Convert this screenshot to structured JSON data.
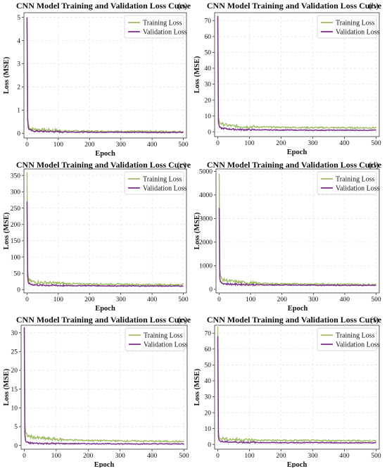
{
  "figure": {
    "panel_title": "CNN Model Training and Validation Loss Curve",
    "xlabel": "Epoch",
    "ylabel": "Loss (MSE)",
    "legend": [
      "Training Loss",
      "Validation Loss"
    ],
    "colors": {
      "training": "#9dbb5f",
      "validation": "#7b2f8c",
      "grid": "#e3e3e3"
    }
  },
  "chart_data": [
    {
      "type": "line",
      "panel": "(a)",
      "title": "CNN Model Training and Validation Loss Curve",
      "xlabel": "Epoch",
      "ylabel": "Loss (MSE)",
      "xlim": [
        -10,
        510
      ],
      "ylim": [
        -0.2,
        5.2
      ],
      "xticks": [
        0,
        100,
        200,
        300,
        400,
        500
      ],
      "yticks": [
        0,
        1,
        2,
        3,
        4,
        5
      ],
      "legend_position": "top-right",
      "grid": true,
      "series": [
        {
          "name": "Training Loss",
          "color": "#9dbb5f",
          "x": [
            0,
            1,
            2,
            3,
            5,
            8,
            12,
            20,
            30,
            50,
            80,
            120,
            200,
            300,
            400,
            500
          ],
          "y": [
            5.0,
            2.0,
            0.7,
            0.4,
            0.3,
            0.25,
            0.2,
            0.18,
            0.16,
            0.14,
            0.12,
            0.1,
            0.09,
            0.08,
            0.08,
            0.07
          ]
        },
        {
          "name": "Validation Loss",
          "color": "#7b2f8c",
          "x": [
            0,
            1,
            2,
            3,
            5,
            8,
            12,
            20,
            30,
            50,
            80,
            120,
            200,
            300,
            400,
            500
          ],
          "y": [
            5.0,
            2.0,
            0.6,
            0.3,
            0.2,
            0.15,
            0.12,
            0.1,
            0.09,
            0.08,
            0.07,
            0.06,
            0.05,
            0.05,
            0.04,
            0.04
          ]
        }
      ]
    },
    {
      "type": "line",
      "panel": "(b)",
      "title": "CNN Model Training and Validation Loss Curve",
      "xlabel": "Epoch",
      "ylabel": "Loss (MSE)",
      "xlim": [
        -10,
        510
      ],
      "ylim": [
        -3,
        75
      ],
      "xticks": [
        0,
        100,
        200,
        300,
        400,
        500
      ],
      "yticks": [
        0,
        10,
        20,
        30,
        40,
        50,
        60,
        70
      ],
      "legend_position": "top-right",
      "grid": true,
      "series": [
        {
          "name": "Training Loss",
          "color": "#9dbb5f",
          "x": [
            0,
            1,
            2,
            3,
            5,
            8,
            12,
            20,
            30,
            50,
            80,
            120,
            200,
            300,
            400,
            500
          ],
          "y": [
            73,
            20,
            9,
            7,
            6,
            5.5,
            5,
            4.5,
            4,
            3.5,
            3.2,
            3,
            2.8,
            2.6,
            2.5,
            2.5
          ]
        },
        {
          "name": "Validation Loss",
          "color": "#7b2f8c",
          "x": [
            0,
            1,
            2,
            3,
            5,
            8,
            12,
            20,
            30,
            50,
            80,
            120,
            200,
            300,
            400,
            500
          ],
          "y": [
            73,
            15,
            6,
            4,
            3,
            2.5,
            2.2,
            2,
            1.8,
            1.5,
            1.3,
            1.2,
            1.1,
            1,
            1,
            1
          ]
        }
      ]
    },
    {
      "type": "line",
      "panel": "(c)",
      "title": "CNN Model Training and Validation Loss Curve",
      "xlabel": "Epoch",
      "ylabel": "Loss (MSE)",
      "xlim": [
        -10,
        510
      ],
      "ylim": [
        -10,
        370
      ],
      "xticks": [
        0,
        100,
        200,
        300,
        400,
        500
      ],
      "yticks": [
        0,
        50,
        100,
        150,
        200,
        250,
        300,
        350
      ],
      "legend_position": "top-right",
      "grid": true,
      "series": [
        {
          "name": "Training Loss",
          "color": "#9dbb5f",
          "x": [
            0,
            1,
            2,
            3,
            5,
            8,
            12,
            20,
            30,
            50,
            80,
            120,
            200,
            300,
            400,
            500
          ],
          "y": [
            360,
            150,
            60,
            40,
            32,
            28,
            25,
            24,
            22,
            21,
            20,
            18,
            17,
            16,
            15,
            15
          ]
        },
        {
          "name": "Validation Loss",
          "color": "#7b2f8c",
          "x": [
            0,
            1,
            2,
            3,
            5,
            8,
            12,
            20,
            30,
            50,
            80,
            120,
            200,
            300,
            400,
            500
          ],
          "y": [
            270,
            90,
            40,
            25,
            20,
            18,
            16,
            15,
            14,
            13,
            13,
            12,
            12,
            11,
            11,
            11
          ]
        }
      ]
    },
    {
      "type": "line",
      "panel": "(d)",
      "title": "CNN Model Training and Validation Loss Curve",
      "xlabel": "Epoch",
      "ylabel": "Loss (MSE)",
      "xlim": [
        -10,
        510
      ],
      "ylim": [
        -150,
        5100
      ],
      "xticks": [
        0,
        100,
        200,
        300,
        400,
        500
      ],
      "yticks": [
        0,
        1000,
        2000,
        3000,
        4000,
        5000
      ],
      "legend_position": "top-right",
      "grid": true,
      "series": [
        {
          "name": "Training Loss",
          "color": "#9dbb5f",
          "x": [
            0,
            1,
            2,
            3,
            5,
            8,
            12,
            20,
            30,
            50,
            80,
            120,
            200,
            300,
            400,
            500
          ],
          "y": [
            4900,
            1500,
            800,
            600,
            500,
            450,
            400,
            380,
            350,
            320,
            280,
            250,
            230,
            220,
            210,
            200
          ]
        },
        {
          "name": "Validation Loss",
          "color": "#7b2f8c",
          "x": [
            0,
            1,
            2,
            3,
            5,
            8,
            12,
            20,
            30,
            50,
            80,
            120,
            200,
            300,
            400,
            500
          ],
          "y": [
            3450,
            1000,
            500,
            350,
            300,
            270,
            250,
            230,
            220,
            210,
            200,
            190,
            180,
            175,
            170,
            170
          ]
        }
      ]
    },
    {
      "type": "line",
      "panel": "(e)",
      "title": "CNN Model Training and Validation Loss Curve",
      "xlabel": "Epoch",
      "ylabel": "Loss (MSE)",
      "xlim": [
        -10,
        510
      ],
      "ylim": [
        -1,
        32
      ],
      "xticks": [
        0,
        100,
        200,
        300,
        400,
        500
      ],
      "yticks": [
        0,
        5,
        10,
        15,
        20,
        25,
        30
      ],
      "legend_position": "top-right",
      "grid": true,
      "series": [
        {
          "name": "Training Loss",
          "color": "#9dbb5f",
          "x": [
            0,
            1,
            2,
            3,
            5,
            8,
            12,
            20,
            30,
            50,
            80,
            120,
            200,
            300,
            400,
            500
          ],
          "y": [
            31.5,
            12,
            5,
            3.5,
            3,
            2.7,
            2.5,
            2.3,
            2.1,
            1.9,
            1.7,
            1.5,
            1.3,
            1.2,
            1.1,
            1.0
          ]
        },
        {
          "name": "Validation Loss",
          "color": "#7b2f8c",
          "x": [
            0,
            1,
            2,
            3,
            5,
            8,
            12,
            20,
            30,
            50,
            80,
            120,
            200,
            300,
            400,
            500
          ],
          "y": [
            31.5,
            10,
            3,
            1.5,
            1,
            0.8,
            0.7,
            0.6,
            0.55,
            0.5,
            0.5,
            0.45,
            0.45,
            0.4,
            0.4,
            0.4
          ]
        }
      ]
    },
    {
      "type": "line",
      "panel": "(f)",
      "title": "CNN Model Training and Validation Loss Curve",
      "xlabel": "Epoch",
      "ylabel": "Loss (MSE)",
      "xlim": [
        -10,
        510
      ],
      "ylim": [
        -3,
        75
      ],
      "xticks": [
        0,
        100,
        200,
        300,
        400,
        500
      ],
      "yticks": [
        0,
        10,
        20,
        30,
        40,
        50,
        60,
        70
      ],
      "legend_position": "top-right",
      "grid": true,
      "series": [
        {
          "name": "Training Loss",
          "color": "#9dbb5f",
          "x": [
            0,
            1,
            2,
            3,
            5,
            8,
            12,
            20,
            30,
            50,
            80,
            120,
            200,
            300,
            400,
            500
          ],
          "y": [
            74,
            20,
            8,
            5,
            4.5,
            4,
            3.8,
            3.5,
            3.2,
            3,
            2.8,
            2.6,
            2.5,
            2.4,
            2.3,
            2.2
          ]
        },
        {
          "name": "Validation Loss",
          "color": "#7b2f8c",
          "x": [
            0,
            1,
            2,
            3,
            5,
            8,
            12,
            20,
            30,
            50,
            80,
            120,
            200,
            300,
            400,
            500
          ],
          "y": [
            68,
            15,
            5,
            3,
            2.5,
            2,
            1.8,
            1.6,
            1.5,
            1.4,
            1.3,
            1.2,
            1.1,
            1.1,
            1,
            1
          ]
        }
      ]
    }
  ]
}
